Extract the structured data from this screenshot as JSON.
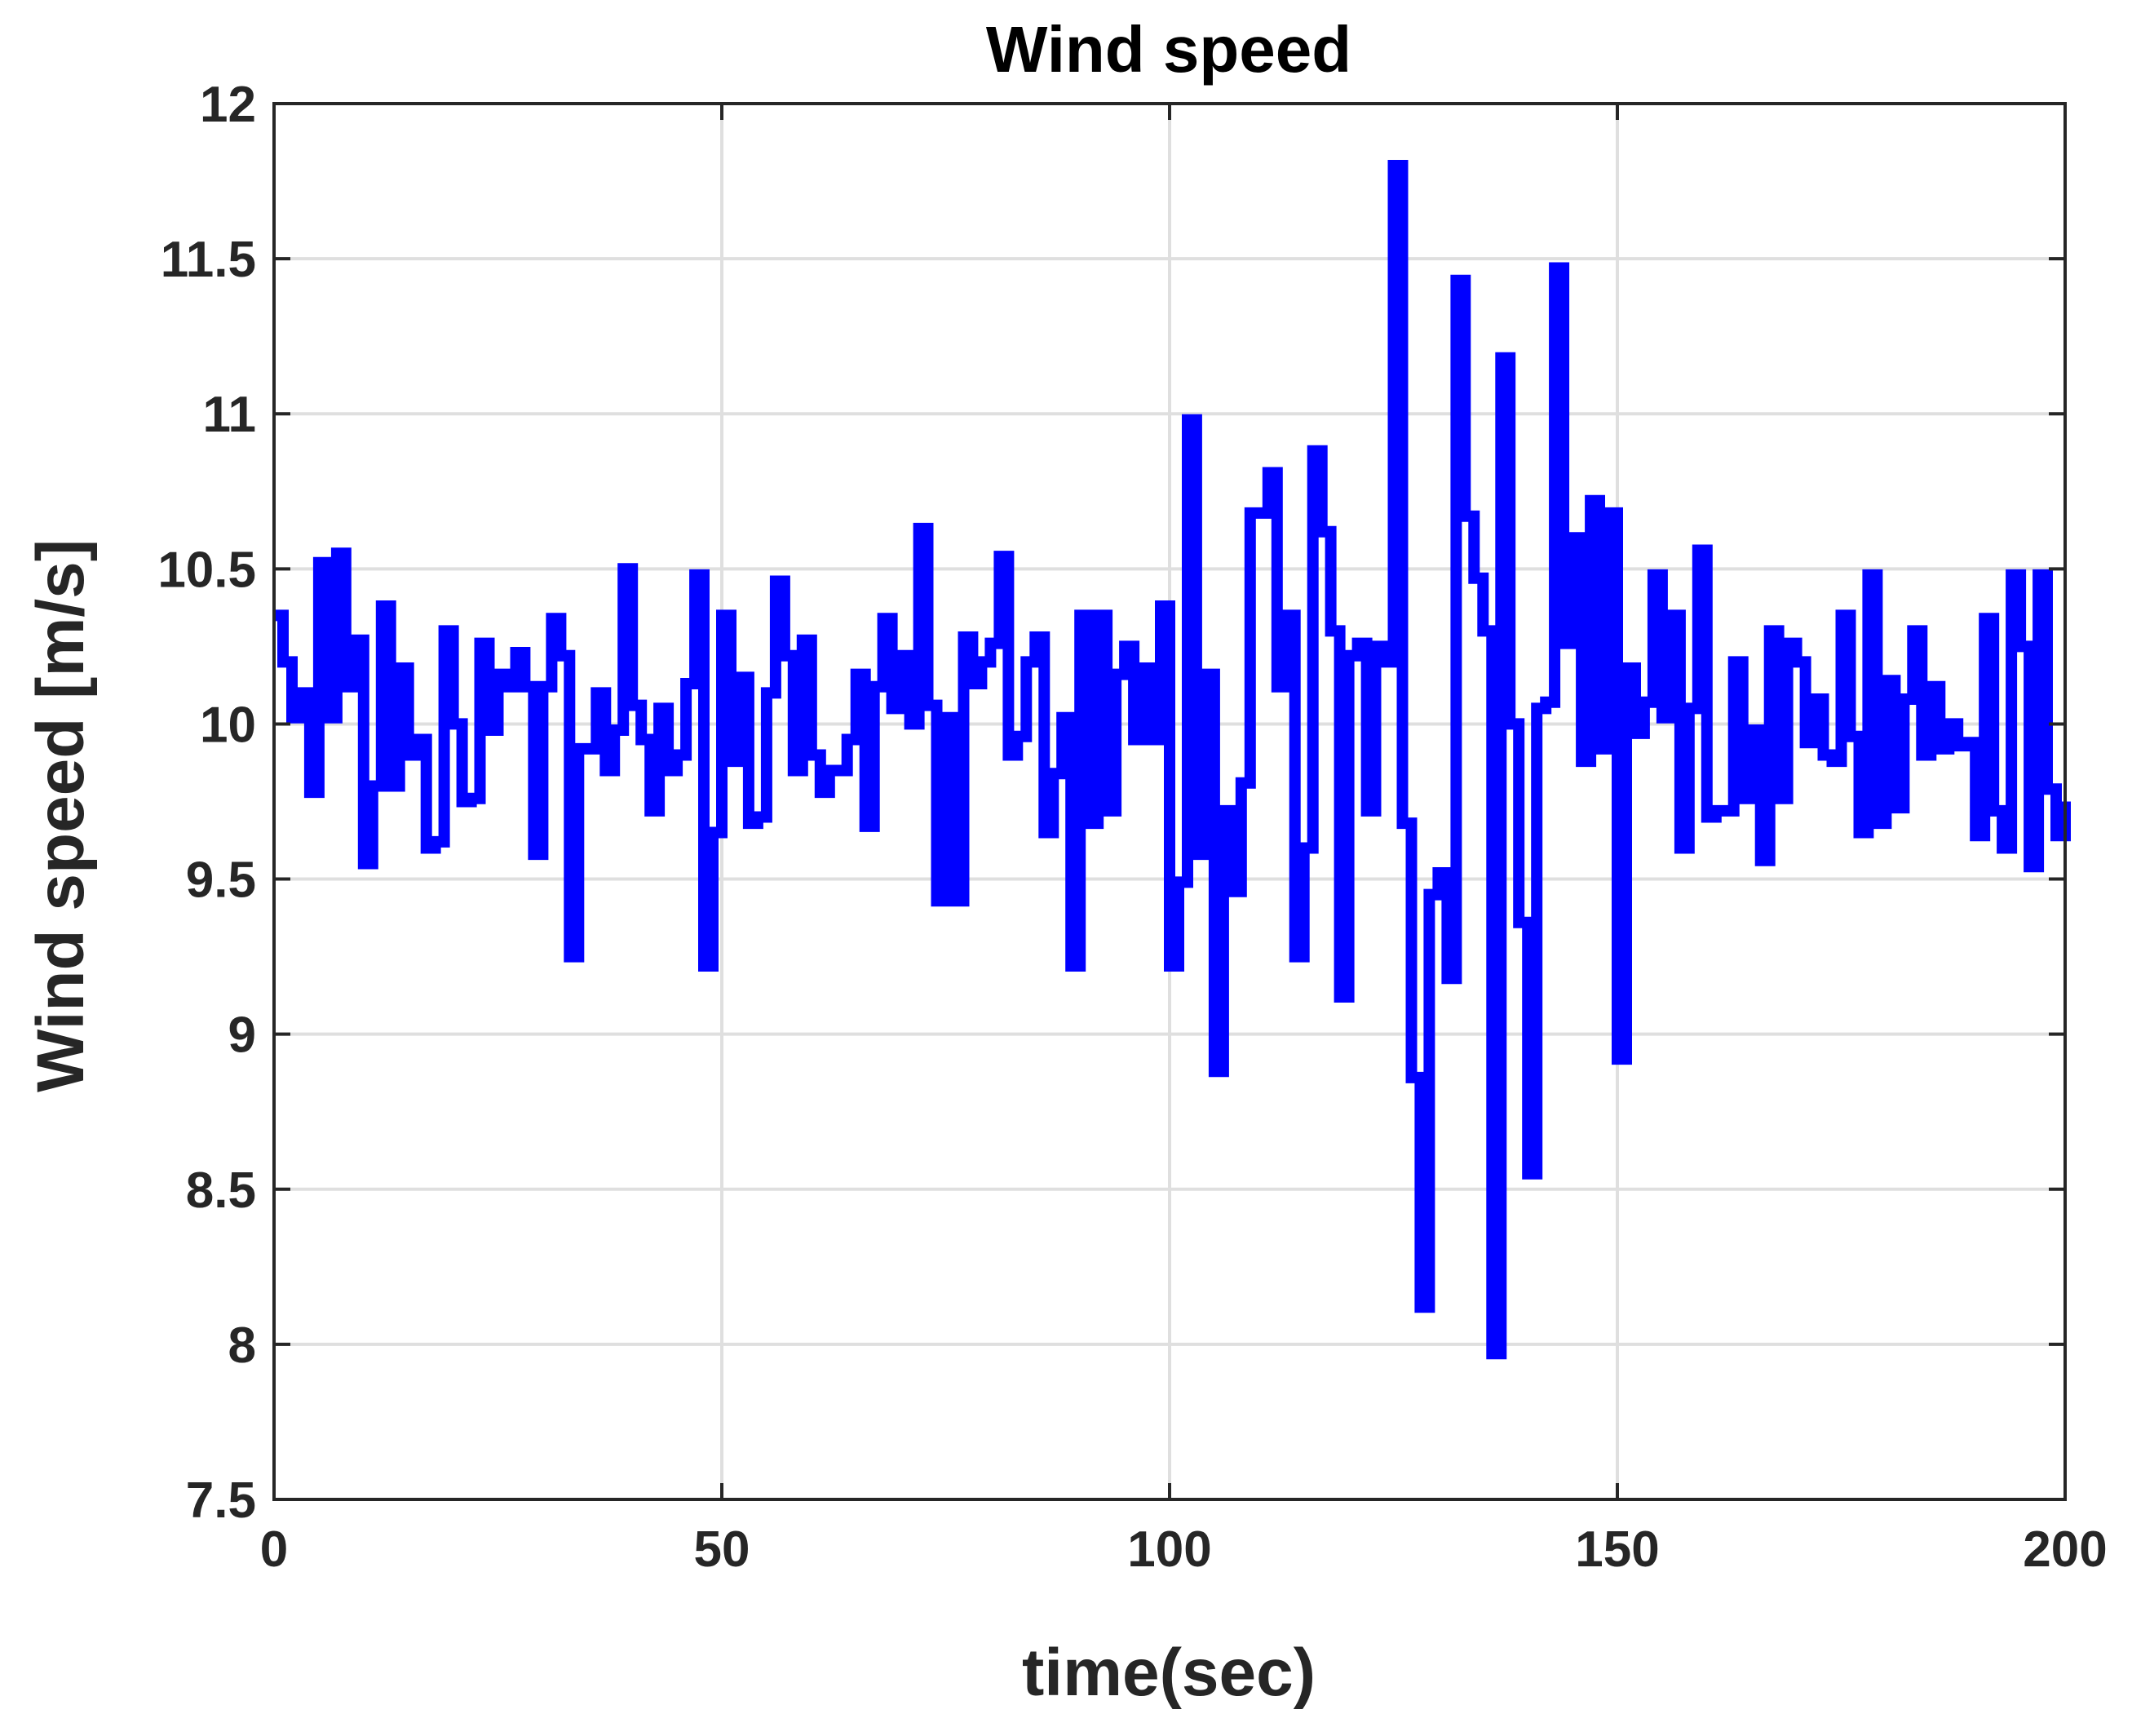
{
  "chart_data": {
    "type": "line",
    "title": "Wind speed",
    "xlabel": "time(sec)",
    "ylabel": "Wind speed [m/s]",
    "xlim": [
      0,
      200
    ],
    "ylim": [
      7.5,
      12
    ],
    "xticks": [
      0,
      50,
      100,
      150,
      200
    ],
    "xtick_labels": [
      "0",
      "50",
      "100",
      "150",
      "200"
    ],
    "yticks": [
      7.5,
      8,
      8.5,
      9,
      9.5,
      10,
      10.5,
      11,
      11.5,
      12
    ],
    "ytick_labels": [
      "7.5",
      "8",
      "8.5",
      "9",
      "9.5",
      "10",
      "10.5",
      "11",
      "11.5",
      "12"
    ],
    "grid": true,
    "line_style": "step",
    "series": [
      {
        "color": "#0000ff",
        "x": [
          0,
          1,
          2,
          3,
          4,
          5,
          6,
          7,
          8,
          9,
          10,
          11,
          12,
          13,
          14,
          15,
          16,
          17,
          18,
          19,
          20,
          21,
          22,
          23,
          24,
          25,
          26,
          27,
          28,
          29,
          30,
          31,
          32,
          33,
          34,
          35,
          36,
          37,
          38,
          39,
          40,
          41,
          42,
          43,
          44,
          45,
          46,
          47,
          48,
          49,
          50,
          51,
          52,
          53,
          54,
          55,
          56,
          57,
          58,
          59,
          60,
          61,
          62,
          63,
          64,
          65,
          66,
          67,
          68,
          69,
          70,
          71,
          72,
          73,
          74,
          75,
          76,
          77,
          78,
          79,
          80,
          81,
          82,
          83,
          84,
          85,
          86,
          87,
          88,
          89,
          90,
          91,
          92,
          93,
          94,
          95,
          96,
          97,
          98,
          99,
          100,
          101,
          102,
          103,
          104,
          105,
          106,
          107,
          108,
          109,
          110,
          111,
          112,
          113,
          114,
          115,
          116,
          117,
          118,
          119,
          120,
          121,
          122,
          123,
          124,
          125,
          126,
          127,
          128,
          129,
          130,
          131,
          132,
          133,
          134,
          135,
          136,
          137,
          138,
          139,
          140,
          141,
          142,
          143,
          144,
          145,
          146,
          147,
          148,
          149,
          150,
          151,
          152,
          153,
          154,
          155,
          156,
          157,
          158,
          159,
          160,
          161,
          162,
          163,
          164,
          165,
          166,
          167,
          168,
          169,
          170,
          171,
          172,
          173,
          174,
          175,
          176,
          177,
          178,
          179,
          180,
          181,
          182,
          183,
          184,
          185,
          186,
          187,
          188,
          189,
          190,
          191,
          192,
          193,
          194,
          195,
          196,
          197,
          198,
          199,
          200
        ],
        "y": [
          10.35,
          10.2,
          10.02,
          10.1,
          9.78,
          10.52,
          10.02,
          10.55,
          10.12,
          10.27,
          9.55,
          9.8,
          10.38,
          9.8,
          10.18,
          9.9,
          9.95,
          9.6,
          9.62,
          10.3,
          10.0,
          9.75,
          9.76,
          10.26,
          9.98,
          10.16,
          10.12,
          10.23,
          10.12,
          9.58,
          10.12,
          10.34,
          10.22,
          9.25,
          9.92,
          9.92,
          10.1,
          9.85,
          9.98,
          10.5,
          10.06,
          9.95,
          9.72,
          10.05,
          9.85,
          9.9,
          10.13,
          10.48,
          9.22,
          9.65,
          10.35,
          9.88,
          10.15,
          9.68,
          9.7,
          10.1,
          10.46,
          10.22,
          9.85,
          10.27,
          9.9,
          9.78,
          9.85,
          9.85,
          9.95,
          10.16,
          9.67,
          10.12,
          10.34,
          10.05,
          10.22,
          10.0,
          10.63,
          10.06,
          9.43,
          10.02,
          9.43,
          10.28,
          10.13,
          10.2,
          10.26,
          10.54,
          9.9,
          9.96,
          10.2,
          10.28,
          9.65,
          9.84,
          10.02,
          9.22,
          10.35,
          9.68,
          10.35,
          9.72,
          10.16,
          10.25,
          9.95,
          10.18,
          9.95,
          10.38,
          9.22,
          9.49,
          10.98,
          9.58,
          10.16,
          8.88,
          9.72,
          9.46,
          9.81,
          10.68,
          10.68,
          10.81,
          10.12,
          10.35,
          9.25,
          9.6,
          10.88,
          10.62,
          10.3,
          9.12,
          10.22,
          10.26,
          9.72,
          10.25,
          10.2,
          11.8,
          9.68,
          8.86,
          8.12,
          9.45,
          9.52,
          9.18,
          11.43,
          10.67,
          10.47,
          10.3,
          7.97,
          11.18,
          10.0,
          9.36,
          8.55,
          10.05,
          10.07,
          11.47,
          10.26,
          10.6,
          9.88,
          10.72,
          9.92,
          10.68,
          8.92,
          10.18,
          9.97,
          10.07,
          10.48,
          10.02,
          10.35,
          9.6,
          10.05,
          10.56,
          9.7,
          9.72,
          9.72,
          10.2,
          9.76,
          9.98,
          9.56,
          10.3,
          9.76,
          10.26,
          10.2,
          9.94,
          10.08,
          9.9,
          9.88,
          10.35,
          9.96,
          9.65,
          10.48,
          9.68,
          10.14,
          9.73,
          10.08,
          10.3,
          9.9,
          10.12,
          9.92,
          10.0,
          9.93,
          9.94,
          9.64,
          10.34,
          9.72,
          9.6,
          10.48,
          10.25,
          9.54,
          10.48,
          9.79,
          9.64,
          9.75
        ]
      }
    ]
  }
}
